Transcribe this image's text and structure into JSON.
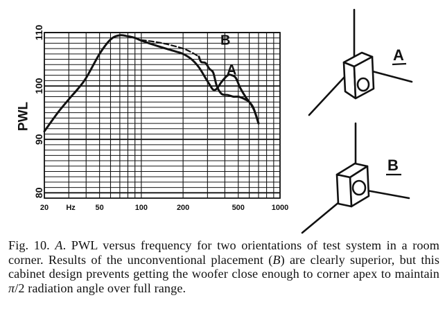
{
  "caption": {
    "fig_label": "Fig. 10.",
    "text_html": "<i>A</i>. PWL versus frequency for two orientations of test system in a room corner. Results of the unconventional placement (<i>B</i>) are clearly superior, but this cabinet design prevents getting the woofer close enough to corner apex to maintain <i>π</i>/2 radiation angle over full range."
  },
  "chart_data": {
    "type": "line",
    "title": "",
    "ylabel": "PWL",
    "xlabel": "",
    "x_unit_label": "Hz",
    "x_scale": "log",
    "xlim": [
      20,
      1000
    ],
    "ylim": [
      79,
      110
    ],
    "x_ticks": [
      {
        "value": 20,
        "label": "20"
      },
      {
        "value": 50,
        "label": "50"
      },
      {
        "value": 100,
        "label": "100"
      },
      {
        "value": 200,
        "label": "200"
      },
      {
        "value": 500,
        "label": "500"
      },
      {
        "value": 1000,
        "label": "1000"
      }
    ],
    "y_ticks": [
      {
        "value": 80,
        "label": "80"
      },
      {
        "value": 90,
        "label": "90"
      },
      {
        "value": 100,
        "label": "100"
      },
      {
        "value": 110,
        "label": "110"
      }
    ],
    "grid": true,
    "series": [
      {
        "name": "A",
        "style": "solid",
        "x": [
          20,
          25,
          30,
          35,
          40,
          50,
          60,
          70,
          80,
          90,
          100,
          120,
          150,
          180,
          200,
          230,
          260,
          290,
          310,
          330,
          350,
          380,
          420,
          450,
          480,
          520,
          580,
          640,
          700
        ],
        "y": [
          91.5,
          95,
          97.5,
          99.5,
          101.5,
          106,
          108.7,
          109.5,
          109.3,
          109,
          108.5,
          107.8,
          107,
          106.4,
          106,
          105,
          103.5,
          101.5,
          100.3,
          99.3,
          99.5,
          100.8,
          102,
          102,
          101.5,
          99.5,
          97.5,
          96,
          93
        ]
      },
      {
        "name": "B",
        "style": "dashed",
        "x": [
          100,
          130,
          160,
          200,
          230,
          260
        ],
        "y": [
          108.6,
          108.2,
          107.7,
          107,
          106.3,
          105.5
        ]
      },
      {
        "name": "B",
        "style": "solid",
        "x": [
          260,
          270,
          290,
          310,
          330,
          350,
          380,
          420,
          460,
          500,
          530,
          560,
          600,
          650,
          700
        ],
        "y": [
          105.5,
          104.5,
          104.3,
          103.2,
          102.5,
          100,
          98.5,
          98.3,
          98,
          98,
          97.8,
          97.5,
          97,
          95.5,
          93
        ]
      }
    ],
    "annotations": [
      {
        "label": "A",
        "x": 150,
        "y": 104
      },
      {
        "label": "B",
        "x": 230,
        "y": 108
      }
    ]
  },
  "diagrams": {
    "a_label": "A",
    "b_label": "B"
  }
}
